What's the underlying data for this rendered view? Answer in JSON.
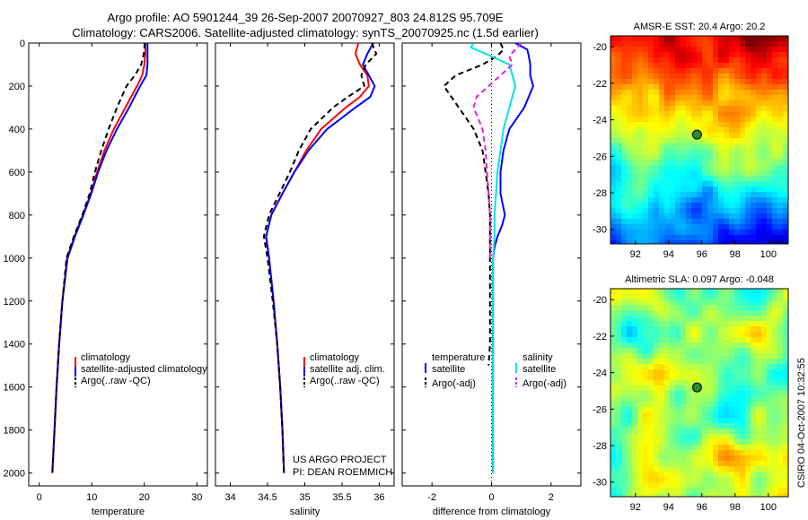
{
  "header": {
    "title_line1": "Argo profile: AO 5901244_39 26-Sep-2007 20070927_803 24.812S 95.709E",
    "title_line2": "Climatology: CARS2006. Satellite-adjusted climatology: synTS_20070925.nc (1.5d earlier)"
  },
  "credits": {
    "project_line1": "US ARGO PROJECT",
    "project_line2": "PI: DEAN ROEMMICH",
    "side_stamp": "CSIRO 04-Oct-2007 10:32:55"
  },
  "colors": {
    "climatology": "#ff0000",
    "satellite": "#0000ff",
    "argo": "#000000",
    "satellite_salinity": "#00e5e5",
    "argo_adj_salinity": "#e020e0"
  },
  "chart_data": [
    {
      "type": "line",
      "name": "temperature-profile",
      "xlabel": "temperature",
      "ylabel": "",
      "xlim": [
        -2,
        32
      ],
      "ylim": [
        2060,
        0
      ],
      "xticks": [
        0,
        10,
        20,
        30
      ],
      "xtick_labels": [
        "0",
        "10",
        "20",
        "30"
      ],
      "yticks": [
        0,
        200,
        400,
        600,
        800,
        1000,
        1200,
        1400,
        1600,
        1800,
        2000
      ],
      "ytick_labels": [
        "0",
        "200",
        "400",
        "600",
        "800",
        "1000",
        "1200",
        "1400",
        "1600",
        "1800",
        "2000"
      ],
      "legend_placement": "lower-right",
      "series": [
        {
          "name": "climatology",
          "color": "#ff0000",
          "style": "solid",
          "depth": [
            0,
            50,
            100,
            150,
            200,
            300,
            400,
            500,
            600,
            700,
            800,
            900,
            1000,
            1200,
            1400,
            1600,
            1800,
            2000
          ],
          "values": [
            20.2,
            20.2,
            20.0,
            19.6,
            18.6,
            16.4,
            14.2,
            12.4,
            11.0,
            9.8,
            8.3,
            6.7,
            5.3,
            4.4,
            3.8,
            3.3,
            2.9,
            2.5
          ]
        },
        {
          "name": "satellite-adjusted climatology",
          "color": "#0000ff",
          "style": "solid",
          "depth": [
            0,
            50,
            100,
            150,
            200,
            300,
            400,
            500,
            600,
            700,
            800,
            900,
            1000,
            1200,
            1400,
            1600,
            1800,
            2000
          ],
          "values": [
            20.6,
            20.6,
            20.6,
            20.4,
            19.2,
            17.1,
            14.8,
            12.8,
            11.2,
            9.9,
            8.4,
            6.8,
            5.4,
            4.4,
            3.8,
            3.3,
            2.9,
            2.5
          ]
        },
        {
          "name": "Argo(..raw -QC)",
          "color": "#000000",
          "style": "dashed",
          "depth": [
            0,
            50,
            100,
            150,
            200,
            300,
            400,
            500,
            600,
            700,
            800,
            900,
            1000,
            1200,
            1400,
            1600,
            1800,
            2000
          ],
          "values": [
            20.1,
            19.9,
            19.4,
            18.2,
            16.6,
            14.8,
            13.2,
            11.8,
            10.6,
            9.6,
            8.2,
            6.6,
            5.2,
            4.4,
            3.8,
            3.3,
            2.9,
            2.5
          ]
        }
      ],
      "legend": [
        "climatology",
        "satellite-adjusted climatology",
        "Argo(..raw -QC)"
      ]
    },
    {
      "type": "line",
      "name": "salinity-profile",
      "xlabel": "salinity",
      "ylabel": "",
      "xlim": [
        33.8,
        36.2
      ],
      "ylim": [
        2060,
        0
      ],
      "xticks": [
        34,
        34.5,
        35,
        35.5,
        36
      ],
      "xtick_labels": [
        "34",
        "34.5",
        "35",
        "35.5",
        "36"
      ],
      "legend_placement": "lower-right",
      "series": [
        {
          "name": "climatology",
          "color": "#ff0000",
          "style": "solid",
          "depth": [
            0,
            50,
            100,
            150,
            200,
            250,
            300,
            400,
            500,
            600,
            700,
            800,
            900,
            1000,
            1200,
            1400,
            1600,
            1800,
            2000
          ],
          "values": [
            35.72,
            35.68,
            35.74,
            35.84,
            35.86,
            35.74,
            35.55,
            35.22,
            35.02,
            34.86,
            34.7,
            34.55,
            34.48,
            34.52,
            34.58,
            34.63,
            34.67,
            34.7,
            34.72
          ]
        },
        {
          "name": "satellite adj. clim.",
          "color": "#0000ff",
          "style": "solid",
          "depth": [
            0,
            50,
            100,
            150,
            200,
            250,
            300,
            400,
            500,
            600,
            700,
            800,
            900,
            1000,
            1200,
            1400,
            1600,
            1800,
            2000
          ],
          "values": [
            35.92,
            35.84,
            35.78,
            35.86,
            35.94,
            35.88,
            35.68,
            35.3,
            35.05,
            34.86,
            34.7,
            34.55,
            34.48,
            34.52,
            34.58,
            34.63,
            34.67,
            34.7,
            34.72
          ]
        },
        {
          "name": "Argo(..raw -QC)",
          "color": "#000000",
          "style": "dashed",
          "depth": [
            0,
            50,
            100,
            150,
            200,
            250,
            300,
            400,
            500,
            600,
            700,
            800,
            900,
            1000,
            1200,
            1400,
            1600,
            1800,
            2000
          ],
          "values": [
            35.9,
            35.96,
            35.82,
            35.76,
            35.8,
            35.58,
            35.38,
            35.08,
            34.92,
            34.8,
            34.66,
            34.52,
            34.45,
            34.5,
            34.57,
            34.63,
            34.67,
            34.7,
            34.72
          ]
        }
      ],
      "legend": [
        "climatology",
        "satellite adj. clim.",
        "Argo(..raw -QC)"
      ]
    },
    {
      "type": "line",
      "name": "difference-profile",
      "xlabel": "difference from climatology",
      "ylabel": "",
      "xlim": [
        -3,
        3
      ],
      "ylim": [
        2060,
        0
      ],
      "xticks": [
        -2,
        0,
        2
      ],
      "xtick_labels": [
        "-2",
        "0",
        "2"
      ],
      "legend_placement": "lower-center",
      "legend_headers": [
        "temperature",
        "salinity"
      ],
      "series": [
        {
          "name": "satellite",
          "group": "temperature",
          "color": "#0000ff",
          "style": "solid",
          "depth": [
            0,
            30,
            60,
            100,
            150,
            200,
            300,
            400,
            500,
            600,
            700,
            800,
            850,
            900,
            950,
            1000,
            1200,
            1500,
            2000
          ],
          "values": [
            0.8,
            1.2,
            1.25,
            1.3,
            1.3,
            1.4,
            1.1,
            0.6,
            0.4,
            0.3,
            0.3,
            0.45,
            0.35,
            0.2,
            0.1,
            0.05,
            0.05,
            0.05,
            0.05
          ]
        },
        {
          "name": "Argo(-adj)",
          "group": "temperature",
          "color": "#000000",
          "style": "dashed",
          "depth": [
            0,
            30,
            60,
            100,
            150,
            200,
            300,
            400,
            500,
            600,
            700,
            800,
            900,
            1000,
            1200,
            1400,
            1500
          ],
          "values": [
            0.3,
            0.4,
            0.2,
            -0.3,
            -1.2,
            -1.6,
            -1.1,
            -0.6,
            -0.3,
            -0.2,
            -0.1,
            -0.05,
            -0.05,
            -0.05,
            -0.05,
            -0.05,
            -0.1
          ]
        },
        {
          "name": "satellite",
          "group": "salinity",
          "color": "#00e5e5",
          "style": "solid",
          "depth": [
            0,
            20,
            50,
            100,
            150,
            200,
            300,
            400,
            500,
            600,
            700,
            800,
            900,
            1000,
            1200,
            1500,
            2000
          ],
          "values": [
            -0.6,
            -0.7,
            -0.2,
            0.6,
            0.7,
            0.8,
            0.6,
            0.4,
            0.3,
            0.2,
            0.15,
            0.1,
            0.1,
            0.05,
            0.05,
            0.05,
            0.05
          ]
        },
        {
          "name": "Argo(-adj)",
          "group": "salinity",
          "color": "#e020e0",
          "style": "dashed",
          "depth": [
            0,
            30,
            60,
            100,
            150,
            200,
            250,
            300,
            400,
            500,
            600,
            700,
            800,
            900,
            1000
          ],
          "values": [
            1.0,
            0.8,
            0.6,
            0.7,
            0.3,
            -0.1,
            -0.5,
            -0.6,
            -0.3,
            -0.2,
            -0.15,
            -0.1,
            -0.05,
            -0.05,
            -0.05
          ]
        }
      ],
      "legend": [
        "satellite",
        "Argo(-adj)",
        "satellite",
        "Argo(-adj)"
      ]
    },
    {
      "type": "heatmap",
      "name": "sst-map",
      "title": "AMSR-E SST: 20.4 Argo: 20.2",
      "xlim": [
        90.5,
        101.2
      ],
      "ylim": [
        -30.8,
        -19.4
      ],
      "xticks": [
        92,
        94,
        96,
        98,
        100
      ],
      "xtick_labels": [
        "92",
        "94",
        "96",
        "98",
        "100"
      ],
      "yticks": [
        -20,
        -22,
        -24,
        -26,
        -28,
        -30
      ],
      "ytick_labels": [
        "-20",
        "-22",
        "-24",
        "-26",
        "-28",
        "-30"
      ],
      "profile_marker": {
        "lon": 95.709,
        "lat": -24.812
      }
    },
    {
      "type": "heatmap",
      "name": "sla-map",
      "title": "Altimetric SLA: 0.097 Argo: -0.048",
      "xlim": [
        90.5,
        101.2
      ],
      "ylim": [
        -30.8,
        -19.4
      ],
      "xticks": [
        92,
        94,
        96,
        98,
        100
      ],
      "xtick_labels": [
        "92",
        "94",
        "96",
        "98",
        "100"
      ],
      "yticks": [
        -20,
        -22,
        -24,
        -26,
        -28,
        -30
      ],
      "ytick_labels": [
        "-20",
        "-22",
        "-24",
        "-26",
        "-28",
        "-30"
      ],
      "profile_marker": {
        "lon": 95.709,
        "lat": -24.812
      }
    }
  ]
}
